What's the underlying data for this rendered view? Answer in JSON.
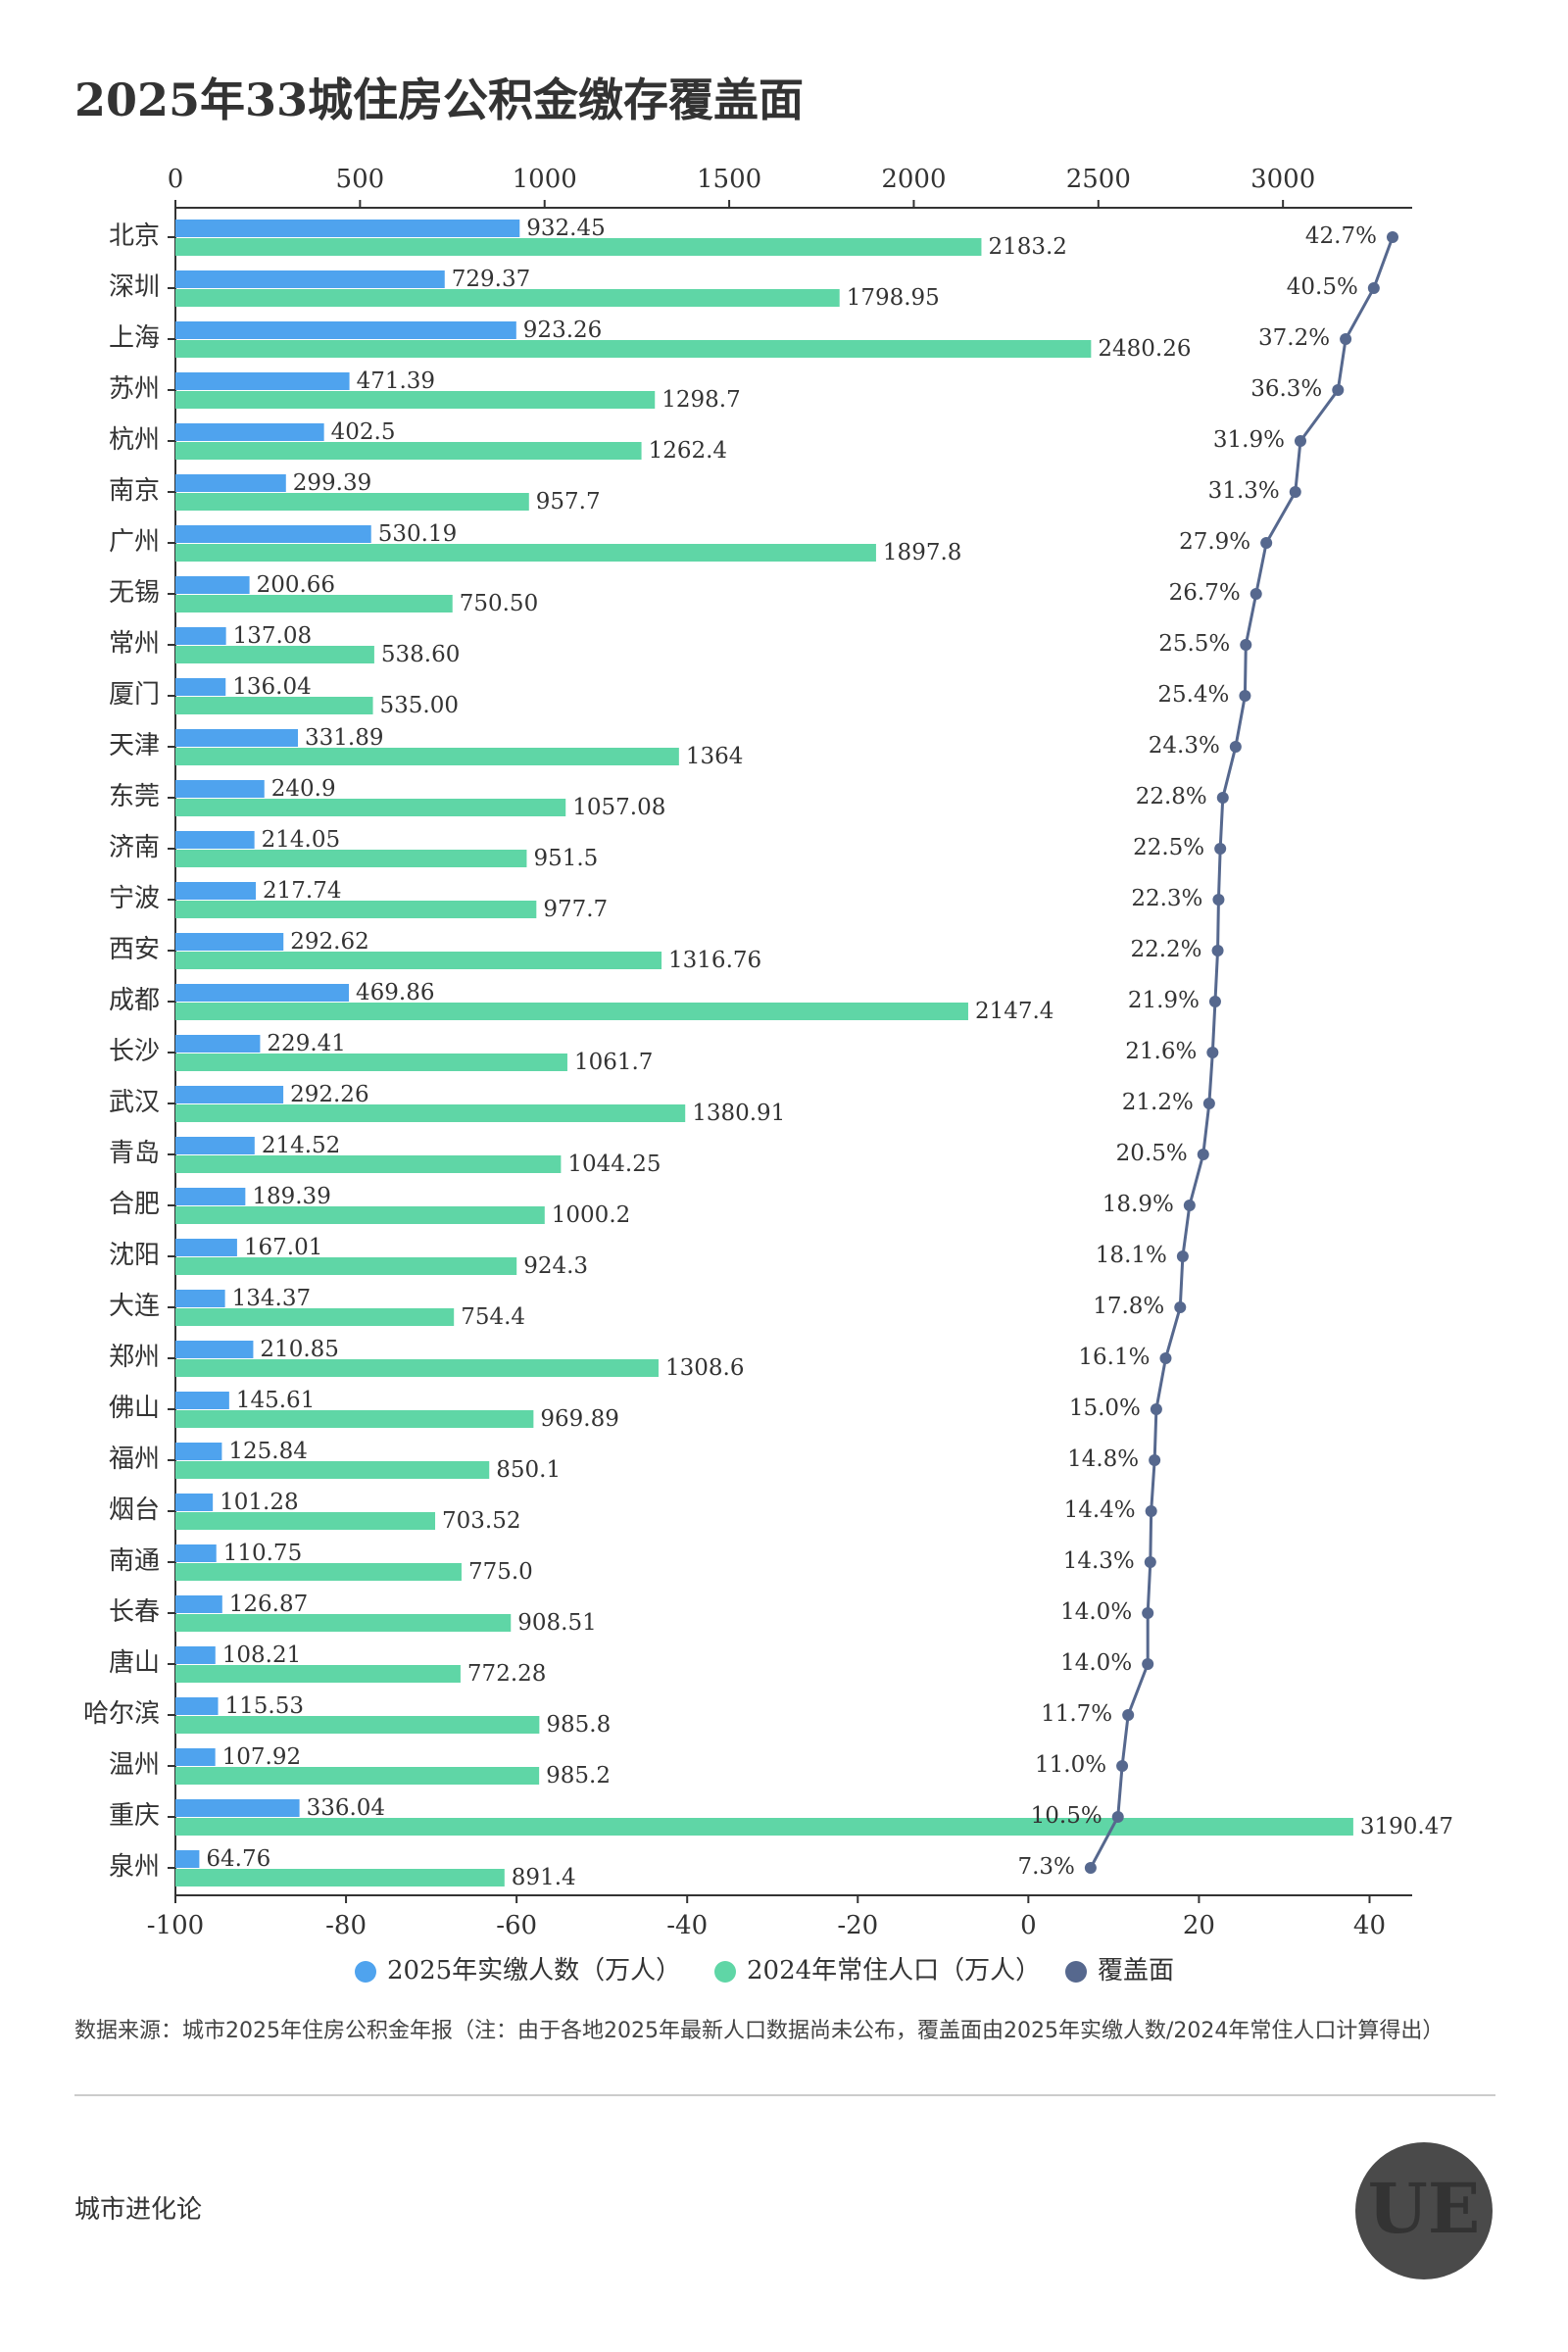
{
  "chart_data": {
    "type": "bar",
    "title": "2025年33城住房公积金缴存覆盖面",
    "categories": [
      "北京",
      "深圳",
      "上海",
      "苏州",
      "杭州",
      "南京",
      "广州",
      "无锡",
      "常州",
      "厦门",
      "天津",
      "东莞",
      "济南",
      "宁波",
      "西安",
      "成都",
      "长沙",
      "武汉",
      "青岛",
      "合肥",
      "沈阳",
      "大连",
      "郑州",
      "佛山",
      "福州",
      "烟台",
      "南通",
      "长春",
      "唐山",
      "哈尔滨",
      "温州",
      "重庆",
      "泉州"
    ],
    "series": [
      {
        "name": "2025年实缴人数（万人）",
        "color": "#4fa3ee",
        "values": [
          932.45,
          729.37,
          923.26,
          471.39,
          402.5,
          299.39,
          530.19,
          200.66,
          137.08,
          136.04,
          331.89,
          240.9,
          214.05,
          217.74,
          292.62,
          469.86,
          229.41,
          292.26,
          214.52,
          189.39,
          167.01,
          134.37,
          210.85,
          145.61,
          125.84,
          101.28,
          110.75,
          126.87,
          108.21,
          115.53,
          107.92,
          336.04,
          64.76
        ]
      },
      {
        "name": "2024年常住人口（万人）",
        "color": "#5fd6a6",
        "values": [
          2183.2,
          1798.95,
          2480.26,
          1298.7,
          1262.4,
          957.7,
          1897.8,
          750.5,
          538.6,
          535,
          1364,
          1057.08,
          951.5,
          977.7,
          1316.76,
          2147.4,
          1061.7,
          1380.91,
          1044.25,
          1000.2,
          924.3,
          754.4,
          1308.6,
          969.89,
          850.1,
          703.52,
          775,
          908.51,
          772.28,
          985.8,
          985.2,
          3190.47,
          891.4
        ],
        "value_labels": [
          "2183.2",
          "1798.95",
          "2480.26",
          "1298.7",
          "1262.4",
          "957.7",
          "1897.8",
          "750.50",
          "538.60",
          "535.00",
          "1364",
          "1057.08",
          "951.5",
          "977.7",
          "1316.76",
          "2147.4",
          "1061.7",
          "1380.91",
          "1044.25",
          "1000.2",
          "924.3",
          "754.4",
          "1308.6",
          "969.89",
          "850.1",
          "703.52",
          "775.0",
          "908.51",
          "772.28",
          "985.8",
          "985.2",
          "3190.47",
          "891.4"
        ]
      },
      {
        "name": "覆盖面",
        "color": "#56688e",
        "axis": "x2",
        "values": [
          42.7,
          40.5,
          37.2,
          36.3,
          31.9,
          31.3,
          27.9,
          26.7,
          25.5,
          25.4,
          24.3,
          22.8,
          22.5,
          22.3,
          22.2,
          21.9,
          21.6,
          21.2,
          20.5,
          18.9,
          18.1,
          17.8,
          16.1,
          15.0,
          14.8,
          14.4,
          14.3,
          14.0,
          14.0,
          11.7,
          11.0,
          10.5,
          7.3
        ],
        "value_labels": [
          "42.7%",
          "40.5%",
          "37.2%",
          "36.3%",
          "31.9%",
          "31.3%",
          "27.9%",
          "26.7%",
          "25.5%",
          "25.4%",
          "24.3%",
          "22.8%",
          "22.5%",
          "22.3%",
          "22.2%",
          "21.9%",
          "21.6%",
          "21.2%",
          "20.5%",
          "18.9%",
          "18.1%",
          "17.8%",
          "16.1%",
          "15.0%",
          "14.8%",
          "14.4%",
          "14.3%",
          "14.0%",
          "14.0%",
          "11.7%",
          "11.0%",
          "10.5%",
          "7.3%"
        ]
      }
    ],
    "xlim": [
      0,
      3350
    ],
    "xticks": [
      0,
      500,
      1000,
      1500,
      2000,
      2500,
      3000
    ],
    "x2lim": [
      -100,
      45
    ],
    "x2ticks": [
      -100,
      -80,
      -60,
      -40,
      -20,
      0,
      20,
      40
    ],
    "note": "数据来源：城市2025年住房公积金年报（注：由于各地2025年最新人口数据尚未公布，覆盖面由2025年实缴人数/2024年常住人口计算得出）",
    "brand": "城市进化论",
    "logo": "UE"
  }
}
